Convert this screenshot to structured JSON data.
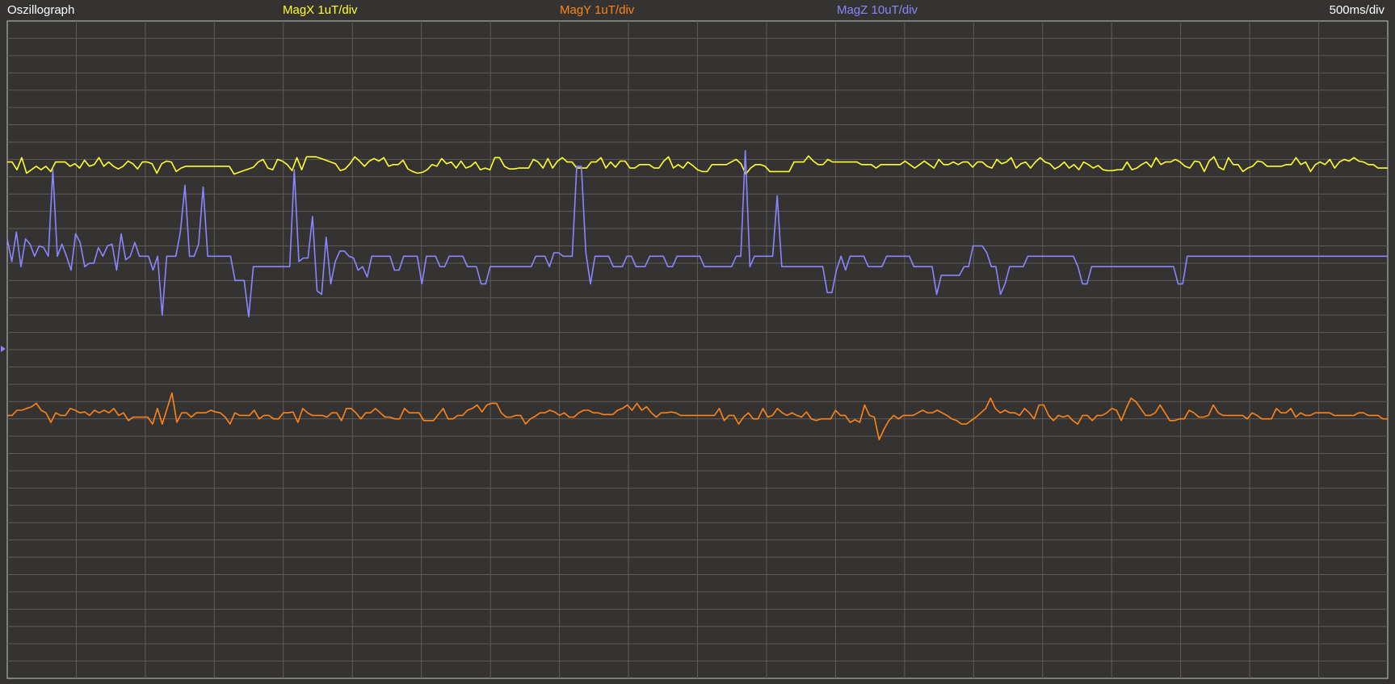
{
  "window": {
    "title": "Oszillograph"
  },
  "channels": [
    {
      "label": "MagX 1uT/div",
      "color": "#ffff30"
    },
    {
      "label": "MagY 1uT/div",
      "color": "#ff8418"
    },
    {
      "label": "MagZ 10uT/div",
      "color": "#8a86ff"
    }
  ],
  "timebase": "500ms/div",
  "chart_data": {
    "type": "line",
    "grid": true,
    "x_divisions": 20,
    "y_divisions": 38,
    "y_unit": "div",
    "x": "sample index (20 samples/div)",
    "series": [
      {
        "name": "MagX",
        "color": "#ffff30",
        "values": [
          0.05,
          0.05,
          -0.4,
          0.3,
          -0.6,
          -0.4,
          -0.2,
          -0.4,
          -0.2,
          -0.5,
          0.05,
          0.05,
          0.05,
          -0.2,
          -0.05,
          -0.3,
          0.15,
          -0.2,
          -0.1,
          0.3,
          -0.2,
          0.05,
          -0.2,
          -0.35,
          -0.2,
          0.1,
          -0.05,
          -0.35,
          0.05,
          0.05,
          -0.05,
          -0.6,
          -0.05,
          0.1,
          0.05,
          -0.5,
          -0.3,
          -0.2,
          -0.2,
          -0.2,
          -0.2,
          -0.2,
          -0.2,
          -0.2,
          -0.2,
          -0.2,
          -0.2,
          -0.65,
          -0.55,
          -0.45,
          -0.35,
          -0.25,
          0.05,
          0.2,
          -0.3,
          -0.4,
          0.2,
          0.1,
          -0.1,
          -0.45,
          0.3,
          -0.4,
          0.35,
          0.35,
          0.35,
          0.25,
          0.15,
          0.05,
          -0.05,
          -0.45,
          -0.35,
          -0.05,
          0.35,
          0.1,
          -0.2,
          0.1,
          0.25,
          0.1,
          0.3,
          -0.2,
          -0.1,
          -0.1,
          0.15,
          -0.35,
          -0.5,
          -0.6,
          -0.55,
          -0.4,
          -0.1,
          -0.2,
          0.25,
          -0.05,
          0.05,
          -0.3,
          0.1,
          -0.3,
          -0.2,
          0.05,
          -0.4,
          -0.3,
          -0.4,
          0.3,
          0.3,
          -0.2,
          -0.35,
          -0.35,
          -0.3,
          -0.3,
          -0.3,
          0.2,
          0.05,
          -0.3,
          0.25,
          -0.3,
          0.1,
          0.3,
          0.05,
          0.05,
          -0.3,
          -0.3,
          -0.3,
          0.05,
          0.05,
          0.3,
          -0.3,
          0.05,
          -0.25,
          0.1,
          0.1,
          -0.3,
          -0.3,
          -0.1,
          -0.1,
          -0.1,
          -0.3,
          -0.3,
          0.1,
          0.35,
          -0.3,
          -0.1,
          -0.3,
          0.05,
          -0.15,
          -0.4,
          -0.5,
          -0.5,
          -0.1,
          -0.1,
          -0.1,
          -0.1,
          0.05,
          0.2,
          -0.05,
          -0.65,
          -0.3,
          -0.1,
          -0.1,
          -0.2,
          -0.5,
          -0.5,
          -0.5,
          -0.5,
          -0.5,
          0.05,
          0.05,
          0.05,
          0.4,
          0.1,
          -0.1,
          -0.1,
          0.2,
          0.05,
          0.05,
          0.05,
          0.05,
          0.05,
          0.05,
          -0.1,
          -0.1,
          -0.1,
          -0.3,
          -0.1,
          -0.1,
          -0.1,
          -0.1,
          -0.1,
          0.1,
          -0.1,
          -0.3,
          -0.1,
          0.1,
          -0.1,
          -0.3,
          0.2,
          -0.1,
          -0.1,
          0.05,
          -0.1,
          0.05,
          0.05,
          -0.25,
          0.05,
          0.05,
          -0.2,
          -0.3,
          0.2,
          -0.05,
          0.05,
          0.3,
          -0.3,
          -0.05,
          0.05,
          -0.3,
          0.05,
          0.3,
          0.05,
          -0.05,
          -0.35,
          -0.2,
          0.05,
          -0.3,
          -0.1,
          -0.4,
          0.05,
          -0.1,
          -0.3,
          -0.15,
          -0.4,
          -0.45,
          -0.45,
          -0.4,
          -0.4,
          0.05,
          -0.4,
          -0.3,
          -0.1,
          0.05,
          -0.25,
          0.3,
          -0.1,
          0.05,
          0.05,
          0.2,
          0.05,
          -0.2,
          -0.3,
          0.1,
          0.05,
          -0.5,
          0.1,
          0.35,
          -0.25,
          -0.4,
          0.3,
          -0.1,
          -0.1,
          -0.5,
          -0.3,
          -0.2,
          0.1,
          0.05,
          -0.2,
          -0.2,
          -0.2,
          -0.2,
          -0.1,
          -0.1,
          0.3,
          -0.1,
          0.05,
          -0.5,
          -0.1,
          0.05,
          -0.1,
          0.2,
          -0.3,
          0.05,
          0.2,
          0.1,
          0.3,
          0.1,
          0.05,
          -0.1,
          -0.1,
          -0.3,
          -0.3,
          -0.3
        ]
      },
      {
        "name": "MagY",
        "color": "#ff8418",
        "values": [
          -0.1,
          -0.1,
          0.2,
          0.2,
          0.3,
          0.4,
          0.6,
          0.2,
          0.05,
          -0.5,
          0.05,
          -0.1,
          -0.1,
          0.3,
          0.2,
          0.05,
          0.1,
          -0.1,
          0.2,
          0.05,
          0.2,
          0.05,
          0.3,
          -0.1,
          0.05,
          -0.4,
          -0.2,
          -0.2,
          -0.2,
          -0.2,
          -0.6,
          0.3,
          -0.6,
          0.3,
          1.2,
          -0.5,
          0.05,
          0.05,
          -0.2,
          0.05,
          0.05,
          0.05,
          0.2,
          0.1,
          0.05,
          -0.2,
          -0.6,
          0.05,
          -0.1,
          -0.1,
          -0.1,
          0.2,
          -0.3,
          -0.1,
          -0.1,
          -0.3,
          -0.3,
          0.05,
          0.05,
          0.1,
          -0.5,
          0.3,
          0.05,
          -0.1,
          -0.1,
          -0.1,
          -0.2,
          0.05,
          0.05,
          -0.4,
          0.3,
          0.3,
          0.05,
          -0.3,
          0.05,
          0.05,
          0.3,
          0.05,
          -0.2,
          -0.2,
          -0.3,
          -0.3,
          0.3,
          0.05,
          0.05,
          0.05,
          -0.4,
          -0.4,
          -0.4,
          -0.05,
          0.3,
          -0.3,
          -0.3,
          -0.1,
          -0.1,
          0.2,
          0.3,
          0.5,
          0.1,
          0.5,
          0.6,
          0.6,
          0.05,
          -0.2,
          -0.2,
          -0.1,
          -0.1,
          -0.6,
          -0.3,
          -0.15,
          0.05,
          0.05,
          0.2,
          0.1,
          -0.1,
          0.05,
          -0.2,
          -0.2,
          0.05,
          0.2,
          0.2,
          0.05,
          0.05,
          -0.05,
          -0.05,
          -0.05,
          0.2,
          0.3,
          0.5,
          0.2,
          0.6,
          0.2,
          0.4,
          0.05,
          -0.2,
          0.05,
          0.05,
          0.1,
          0.05,
          -0.1,
          -0.1,
          -0.1,
          -0.1,
          -0.1,
          -0.1,
          -0.1,
          -0.1,
          0.3,
          -0.4,
          -0.1,
          -0.1,
          -0.6,
          -0.2,
          0.05,
          -0.3,
          -0.3,
          0.3,
          -0.2,
          -0.1,
          0.3,
          0.05,
          -0.1,
          0.05,
          -0.1,
          -0.2,
          0.1,
          -0.3,
          -0.4,
          -0.3,
          -0.3,
          -0.3,
          0.2,
          -0.1,
          -0.1,
          -0.5,
          -0.35,
          -0.5,
          0.5,
          -0.1,
          -0.2,
          -1.5,
          -0.9,
          -0.4,
          -0.1,
          -0.3,
          -0.1,
          -0.1,
          -0.1,
          0.05,
          0.2,
          0.05,
          0.05,
          0.2,
          0.05,
          -0.1,
          -0.3,
          -0.4,
          -0.6,
          -0.6,
          -0.4,
          -0.2,
          0.05,
          0.3,
          0.9,
          0.3,
          0.05,
          0.2,
          0.05,
          0.05,
          -0.1,
          0.3,
          0.05,
          -0.3,
          0.5,
          0.5,
          -0.1,
          -0.4,
          -0.1,
          -0.2,
          -0.1,
          -0.4,
          -0.6,
          -0.1,
          -0.1,
          -0.4,
          -0.1,
          -0.1,
          0.05,
          0.3,
          0.2,
          -0.4,
          0.3,
          0.9,
          0.7,
          0.3,
          -0.1,
          -0.1,
          0.05,
          0.5,
          0.05,
          -0.4,
          -0.4,
          -0.3,
          -0.3,
          0.2,
          0.05,
          -0.2,
          -0.2,
          -0.1,
          0.5,
          0.05,
          -0.1,
          -0.1,
          -0.1,
          -0.1,
          -0.1,
          -0.3,
          0.05,
          -0.1,
          -0.3,
          -0.3,
          -0.3,
          0.3,
          0.05,
          0.05,
          0.3,
          -0.2,
          0.05,
          -0.1,
          -0.1,
          0.05,
          0.05,
          0.05,
          0.05,
          -0.1,
          -0.1,
          -0.1,
          -0.1,
          -0.1,
          0.05,
          0.05,
          -0.1,
          -0.1,
          -0.1,
          -0.3,
          -0.3
        ]
      },
      {
        "name": "MagZ",
        "color": "#8a86ff",
        "values": [
          0.6,
          -0.7,
          1.0,
          -1.0,
          0.6,
          0.3,
          -0.4,
          0.2,
          0.1,
          -0.4,
          4.6,
          -0.4,
          0.3,
          -0.4,
          -1.2,
          0.9,
          0.4,
          -1.0,
          -0.8,
          -0.8,
          0.1,
          -0.4,
          0.2,
          0.3,
          -1.2,
          0.9,
          -0.6,
          -0.4,
          0.4,
          -0.4,
          -0.4,
          -0.4,
          -1.2,
          -0.4,
          -3.8,
          -0.4,
          -0.4,
          -0.4,
          1.0,
          3.7,
          -0.4,
          -0.4,
          0.3,
          3.6,
          -0.4,
          -0.4,
          -0.4,
          -0.4,
          -0.4,
          -0.4,
          -1.8,
          -1.8,
          -1.8,
          -3.9,
          -1.0,
          -1.0,
          -1.0,
          -1.0,
          -1.0,
          -1.0,
          -1.0,
          -1.0,
          -1.0,
          4.6,
          -0.7,
          -0.5,
          -0.5,
          1.9,
          -2.4,
          -2.6,
          0.7,
          -2.0,
          -0.7,
          -0.1,
          -0.1,
          -0.4,
          -0.5,
          -1.2,
          -1.0,
          -1.6,
          -0.4,
          -0.4,
          -0.4,
          -0.4,
          -0.4,
          -1.2,
          -1.2,
          -0.4,
          -0.4,
          -0.4,
          -0.4,
          -2.0,
          -0.4,
          -0.4,
          -0.4,
          -1.0,
          -1.0,
          -0.4,
          -0.4,
          -0.4,
          -0.4,
          -1.0,
          -1.0,
          -1.0,
          -2.0,
          -2.0,
          -1.0,
          -1.0,
          -1.0,
          -1.0,
          -1.0,
          -1.0,
          -1.0,
          -1.0,
          -1.0,
          -1.0,
          -0.4,
          -0.4,
          -0.4,
          -1.0,
          -0.2,
          -0.2,
          -0.4,
          -0.4,
          -0.4,
          4.8,
          4.8,
          -0.2,
          -2.0,
          -0.4,
          -0.4,
          -0.4,
          -0.4,
          -1.0,
          -1.0,
          -1.0,
          -0.4,
          -0.4,
          -1.0,
          -1.0,
          -1.0,
          -0.4,
          -0.4,
          -0.4,
          -0.4,
          -1.0,
          -1.0,
          -0.4,
          -0.4,
          -0.4,
          -0.4,
          -0.4,
          -0.4,
          -1.0,
          -1.0,
          -1.0,
          -1.0,
          -1.0,
          -1.0,
          -1.0,
          -0.4,
          -0.4,
          5.7,
          -1.0,
          -0.4,
          -0.4,
          -0.4,
          -0.4,
          -0.4,
          3.1,
          -1.0,
          -1.0,
          -1.0,
          -1.0,
          -1.0,
          -1.0,
          -1.0,
          -1.0,
          -1.0,
          -1.0,
          -2.5,
          -2.5,
          -1.2,
          -0.4,
          -1.2,
          -0.4,
          -0.4,
          -0.4,
          -0.4,
          -1.0,
          -1.0,
          -1.0,
          -1.0,
          -0.4,
          -0.4,
          -0.4,
          -0.4,
          -0.4,
          -0.4,
          -1.0,
          -1.0,
          -1.0,
          -1.0,
          -1.0,
          -2.6,
          -1.5,
          -1.5,
          -1.5,
          -1.5,
          -1.5,
          -1.0,
          -1.0,
          0.2,
          0.2,
          0.2,
          -0.2,
          -1.0,
          -1.0,
          -2.6,
          -2.0,
          -1.0,
          -1.0,
          -1.0,
          -1.0,
          -0.4,
          -0.4,
          -0.4,
          -0.4,
          -0.4,
          -0.4,
          -0.4,
          -0.4,
          -0.4,
          -0.4,
          -0.4,
          -1.0,
          -2.0,
          -2.0,
          -1.0,
          -1.0,
          -1.0,
          -1.0,
          -1.0,
          -1.0,
          -1.0,
          -1.0,
          -1.0,
          -1.0,
          -1.0,
          -1.0,
          -1.0,
          -1.0,
          -1.0,
          -1.0,
          -1.0,
          -1.0,
          -1.0,
          -2.0,
          -2.0,
          -0.4,
          -0.4,
          -0.4,
          -0.4,
          -0.4,
          -0.4,
          -0.4,
          -0.4,
          -0.4,
          -0.4,
          -0.4,
          -0.4,
          -0.4,
          -0.4,
          -0.4,
          -0.4,
          -0.4,
          -0.4,
          -0.4,
          -0.4,
          -0.4,
          -0.4,
          -0.4,
          -0.4,
          -0.4,
          -0.4,
          -0.4,
          -0.4,
          -0.4,
          -0.4,
          -0.4,
          -0.4,
          -0.4,
          -0.4,
          -0.4,
          -0.4,
          -0.4,
          -0.4,
          -0.4,
          -0.4,
          -0.4,
          -0.4,
          -0.4,
          -0.4,
          -0.4
        ]
      }
    ]
  }
}
